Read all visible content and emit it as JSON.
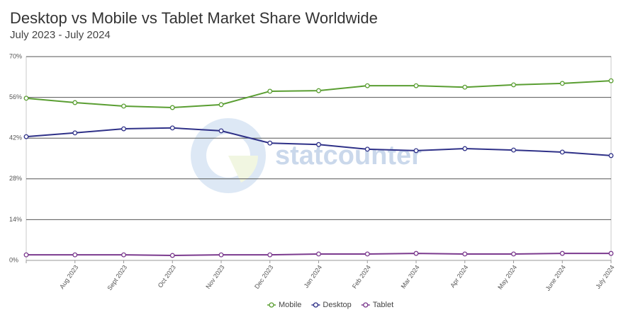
{
  "chart_data": {
    "type": "line",
    "title": "Desktop vs Mobile vs Tablet Market Share Worldwide",
    "subtitle": "July 2023 - July 2024",
    "watermark": "statcounter",
    "categories": [
      null,
      "Aug 2023",
      "Sept 2023",
      "Oct 2023",
      "Nov 2023",
      "Dec 2023",
      "Jan 2024",
      "Feb 2024",
      "Mar 2024",
      "Apr 2024",
      "May 2024",
      "June 2024",
      "July 2024"
    ],
    "series": [
      {
        "name": "Mobile",
        "color": "#5a9e32",
        "values": [
          55.7,
          54.2,
          53.0,
          52.5,
          53.5,
          58.1,
          58.3,
          60.0,
          60.0,
          59.5,
          60.3,
          60.8,
          61.7
        ]
      },
      {
        "name": "Desktop",
        "color": "#2f3188",
        "values": [
          42.5,
          43.8,
          45.2,
          45.5,
          44.5,
          40.3,
          39.8,
          38.2,
          37.7,
          38.4,
          37.9,
          37.2,
          36.0
        ]
      },
      {
        "name": "Tablet",
        "color": "#7b3a8e",
        "values": [
          1.9,
          1.9,
          1.9,
          1.7,
          1.9,
          1.9,
          2.2,
          2.2,
          2.4,
          2.2,
          2.2,
          2.4,
          2.4
        ]
      }
    ],
    "ylim": [
      0,
      70
    ],
    "yticks": [
      {
        "value": 0,
        "label": "0%"
      },
      {
        "value": 14,
        "label": "14%"
      },
      {
        "value": 28,
        "label": "28%"
      },
      {
        "value": 42,
        "label": "42%"
      },
      {
        "value": 56,
        "label": "56%"
      },
      {
        "value": 70,
        "label": "70%"
      }
    ],
    "grid": true
  }
}
